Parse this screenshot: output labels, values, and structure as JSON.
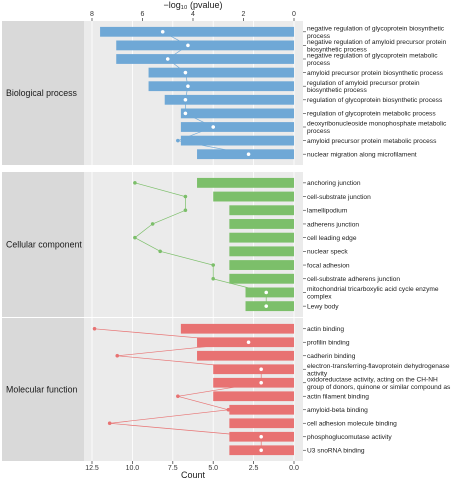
{
  "chart_data": {
    "type": "bar",
    "orientation": "horizontal",
    "xlabel": "Count",
    "x2label": "−log₁₀ (pvalue)",
    "xlim": [
      12.5,
      0
    ],
    "x2lim": [
      8,
      0
    ],
    "x_ticks": [
      "12.5",
      "10.0",
      "7.5",
      "5.0",
      "2.5",
      "0.0"
    ],
    "x2_ticks": [
      "8",
      "6",
      "4",
      "2",
      "0"
    ],
    "grid": true,
    "groups": [
      {
        "name": "Biological process",
        "color": "#6fa8d6",
        "terms": [
          {
            "label": [
              "negative regulation of glycoprotein biosynthetic",
              "process"
            ],
            "count": 12,
            "pvalue": 5.2
          },
          {
            "label": [
              "negative regulation of amyloid precursor protein",
              "biosynthetic process"
            ],
            "count": 11,
            "pvalue": 4.2
          },
          {
            "label": [
              "negative regulation of glycoprotein metabolic",
              "process"
            ],
            "count": 11,
            "pvalue": 5.0
          },
          {
            "label": [
              "amyloid precursor protein biosynthetic process"
            ],
            "count": 9,
            "pvalue": 4.3
          },
          {
            "label": [
              "regulation of amyloid precursor protein",
              "biosynthetic process"
            ],
            "count": 9,
            "pvalue": 4.2
          },
          {
            "label": [
              "regulation of glycoprotein biosynthetic process"
            ],
            "count": 8,
            "pvalue": 4.3
          },
          {
            "label": [
              "regulation of glycoprotein metabolic process"
            ],
            "count": 7,
            "pvalue": 4.3
          },
          {
            "label": [
              "deoxyribonucleoside monophosphate metabolic",
              "process"
            ],
            "count": 7,
            "pvalue": 3.2
          },
          {
            "label": [
              "amyloid precursor protein metabolic process"
            ],
            "count": 7,
            "pvalue": 4.6
          },
          {
            "label": [
              "nuclear migration along microfilament"
            ],
            "count": 6,
            "pvalue": 1.8
          }
        ]
      },
      {
        "name": "Cellular component",
        "color": "#7cbf6a",
        "terms": [
          {
            "label": [
              "anchoring junction"
            ],
            "count": 6,
            "pvalue": 6.3
          },
          {
            "label": [
              "cell-substrate junction"
            ],
            "count": 5,
            "pvalue": 4.3
          },
          {
            "label": [
              "lamellipodium"
            ],
            "count": 4,
            "pvalue": 4.3
          },
          {
            "label": [
              "adherens junction"
            ],
            "count": 4,
            "pvalue": 5.6
          },
          {
            "label": [
              "cell leading edge"
            ],
            "count": 4,
            "pvalue": 6.3
          },
          {
            "label": [
              "nuclear speck"
            ],
            "count": 4,
            "pvalue": 5.3
          },
          {
            "label": [
              "focal adhesion"
            ],
            "count": 4,
            "pvalue": 3.2
          },
          {
            "label": [
              "cell-substrate adherens junction"
            ],
            "count": 4,
            "pvalue": 3.2
          },
          {
            "label": [
              "mitochondrial tricarboxylic acid cycle enzyme",
              "complex"
            ],
            "count": 3,
            "pvalue": 1.1
          },
          {
            "label": [
              "Lewy body"
            ],
            "count": 3,
            "pvalue": 1.1
          }
        ]
      },
      {
        "name": "Molecular function",
        "color": "#e87272",
        "terms": [
          {
            "label": [
              "actin binding"
            ],
            "count": 7,
            "pvalue": 7.9
          },
          {
            "label": [
              "profilin binding"
            ],
            "count": 6,
            "pvalue": 1.8
          },
          {
            "label": [
              "cadherin binding"
            ],
            "count": 6,
            "pvalue": 7.0
          },
          {
            "label": [
              "electron-transferring-flavoprotein dehydrogenase",
              "activity"
            ],
            "count": 5,
            "pvalue": 1.3
          },
          {
            "label": [
              "oxidoreductase activity, acting on the CH-NH",
              "group of donors, quinone or similar compound as"
            ],
            "count": 5,
            "pvalue": 1.3
          },
          {
            "label": [
              "actin filament binding"
            ],
            "count": 5,
            "pvalue": 4.6
          },
          {
            "label": [
              "amyloid-beta binding"
            ],
            "count": 4,
            "pvalue": 2.6
          },
          {
            "label": [
              "cell adhesion molecule binding"
            ],
            "count": 4,
            "pvalue": 7.3
          },
          {
            "label": [
              "phosphoglucomutase activity"
            ],
            "count": 4,
            "pvalue": 1.3
          },
          {
            "label": [
              "U3 snoRNA binding"
            ],
            "count": 4,
            "pvalue": 1.3
          }
        ]
      }
    ]
  }
}
